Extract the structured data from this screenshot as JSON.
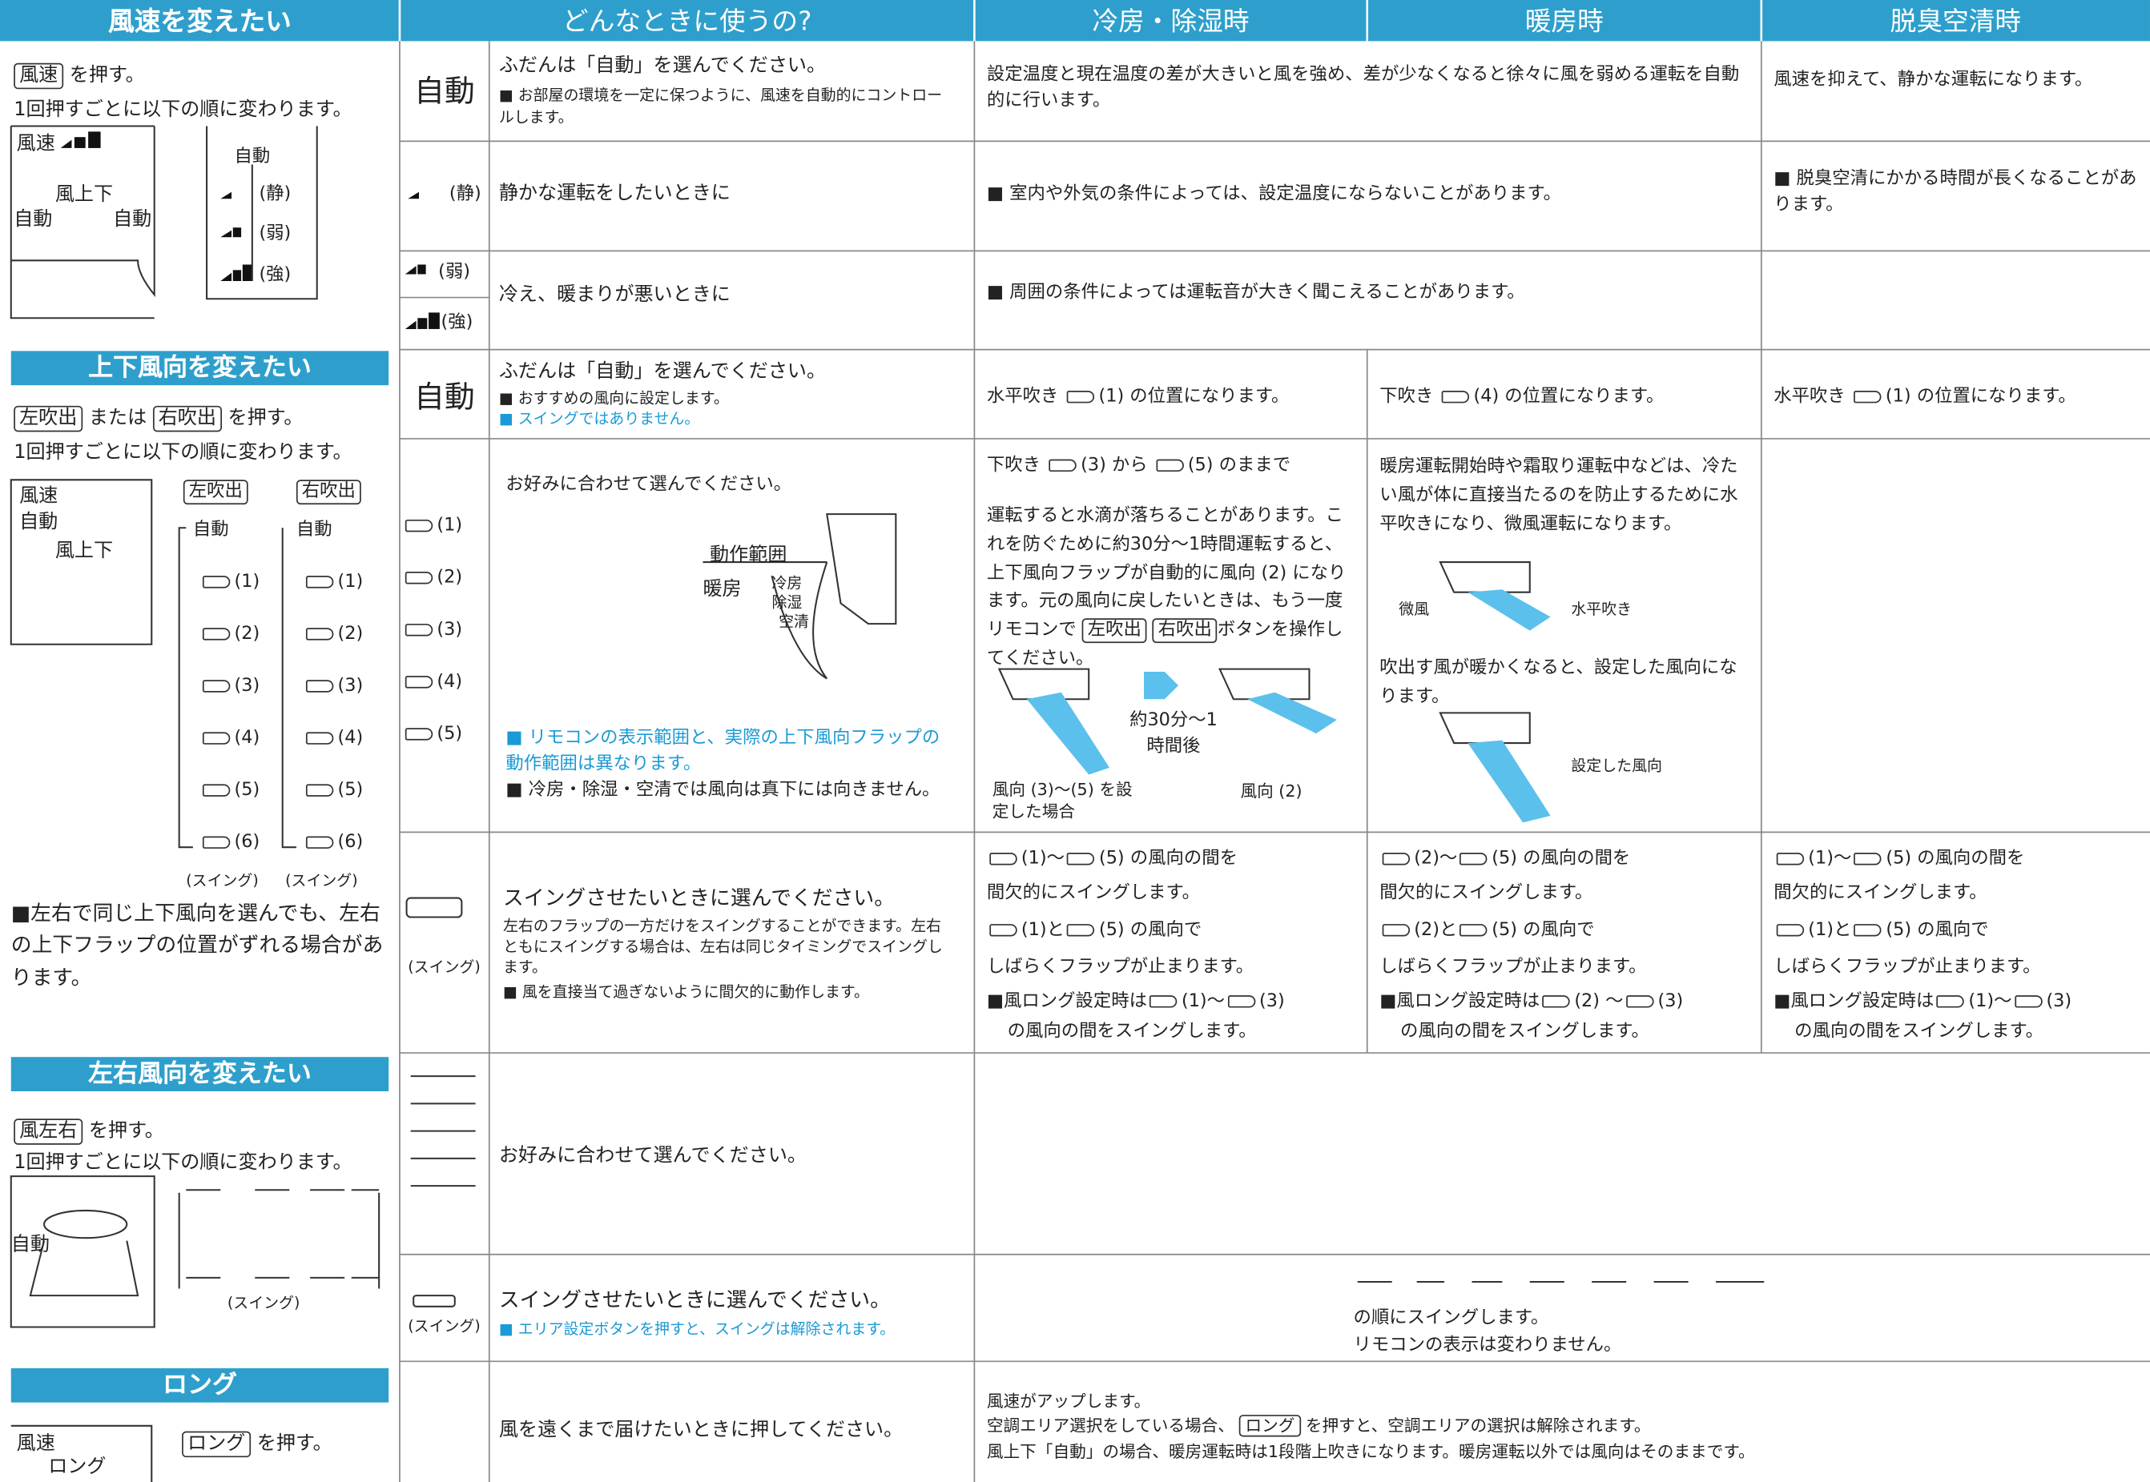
{
  "header": {
    "usage": "どんなときに使うの?",
    "cool": "冷房・除湿時",
    "heat": "暖房時",
    "deodor": "脱臭空清時"
  },
  "fan_speed": {
    "title": "風速を変えたい",
    "button": "風速",
    "press": "を押す。",
    "cycle": "1回押すごとに以下の順に変わります。",
    "display": {
      "speed": "風速",
      "updown": "風上下",
      "auto_left": "自動",
      "auto_right": "自動"
    },
    "sequence": [
      "自動",
      "(静)",
      "(弱)",
      "(強)"
    ],
    "auto": {
      "mode": "自動",
      "usage": "ふだんは「自動」を選んでください。",
      "note": "■ お部屋の環境を一定に保つように、風速を自動的にコントロールします。",
      "cool_heat": "設定温度と現在温度の差が大きいと風を強め、差が少なくなると徐々に風を弱める運転を自動的に行います。",
      "deodor": "風速を抑えて、静かな運転になります。"
    },
    "quiet": {
      "mode": "(静)",
      "usage": "静かな運転をしたいときに",
      "cool_heat": "■ 室内や外気の条件によっては、設定温度にならないことがあります。",
      "deodor": "■ 脱臭空清にかかる時間が長くなることがあります。"
    },
    "strong": {
      "modes": [
        "(弱)",
        "(強)"
      ],
      "usage": "冷え、暖まりが悪いときに",
      "cool_heat": "■ 周囲の条件によっては運転音が大きく聞こえることがあります。"
    }
  },
  "vertical": {
    "title": "上下風向を変えたい",
    "button_left": "左吹出",
    "or": "または",
    "button_right": "右吹出",
    "press": "を押す。",
    "cycle": "1回押すごとに以下の順に変わります。",
    "display": {
      "speed": "風速",
      "auto": "自動",
      "updown": "風上下"
    },
    "columns": [
      "左吹出",
      "右吹出"
    ],
    "sequence": [
      "自動",
      "(1)",
      "(2)",
      "(3)",
      "(4)",
      "(5)",
      "(6)"
    ],
    "swing_labels": [
      "(スイング)",
      "(スイング)"
    ],
    "note": "■左右で同じ上下風向を選んでも、左右の上下フラップの位置がずれる場合があります。",
    "auto": {
      "mode": "自動",
      "usage": "ふだんは「自動」を選んでください。",
      "notes": [
        "■ おすすめの風向に設定します。",
        "■ スイングではありません。"
      ],
      "cool": [
        "水平吹き",
        "(1) の位置になります。"
      ],
      "heat": [
        "下吹き",
        "(4) の位置になります。"
      ],
      "deodor": [
        "水平吹き",
        "(1) の位置になります。"
      ]
    },
    "options": {
      "positions": [
        "(1)",
        "(2)",
        "(3)",
        "(4)",
        "(5)"
      ],
      "usage": "お好みに合わせて選んでください。",
      "figure": [
        "動作範囲",
        "暖房",
        "冷房",
        "除湿",
        "空清"
      ],
      "notes": [
        "■ リモコンの表示範囲と、実際の上下風向フラップの動作範囲は異なります。",
        "■ 冷房・除湿・空清では風向は真下には向きません。"
      ],
      "cool": {
        "intro": [
          "下吹き",
          "(3) から",
          "(5) のままで"
        ],
        "text": "運転すると水滴が落ちることがあります。これを防ぐために約30分～1時間運転すると、上下風向フラップが自動的に風向 (2) になります。元の風向に戻したいときは、もう一度リモコンで",
        "buttons": [
          "左吹出",
          "右吹出"
        ],
        "text_end": "ボタンを操作してください。",
        "time": "約30分～1時間後",
        "before": "風向 (3)～(5) を設定した場合",
        "after": "風向 (2)"
      },
      "heat": {
        "text": "暖房運転開始時や霜取り運転中などは、冷たい風が体に直接当たるのを防止するために水平吹きになり、微風運転になります。",
        "weak": "微風",
        "horizontal": "水平吹き",
        "text2": "吹出す風が暖かくなると、設定した風向になります。",
        "set": "設定した風向"
      }
    },
    "swing": {
      "label": "(スイング)",
      "usage": "スイングさせたいときに選んでください。",
      "note1": "左右のフラップの一方だけをスイングすることができます。左右ともにスイングする場合は、左右は同じタイミングでスイングします。",
      "note2": "■ 風を直接当て過ぎないように間欠的に動作します。",
      "cool": [
        [
          "(1)～",
          "(5) の風向の間を"
        ],
        [
          "間欠的にスイングします。"
        ],
        [
          "(1)と",
          "(5) の風向で"
        ],
        [
          "しばらくフラップが止まります。"
        ],
        [
          "■風ロング設定時は",
          "(1)～",
          "(3)"
        ],
        [
          "の風向の間をスイングします。"
        ]
      ],
      "heat": [
        [
          "(2)～",
          "(5) の風向の間を"
        ],
        [
          "間欠的にスイングします。"
        ],
        [
          "(2)と",
          "(5) の風向で"
        ],
        [
          "しばらくフラップが止まります。"
        ],
        [
          "■風ロング設定時は",
          "(2) ～",
          "(3)"
        ],
        [
          "の風向の間をスイングします。"
        ]
      ],
      "deodor": [
        [
          "(1)～",
          "(5) の風向の間を"
        ],
        [
          "間欠的にスイングします。"
        ],
        [
          "(1)と",
          "(5) の風向で"
        ],
        [
          "しばらくフラップが止まります。"
        ],
        [
          "■風ロング設定時は",
          "(1)～",
          "(3)"
        ],
        [
          "の風向の間をスイングします。"
        ]
      ]
    }
  },
  "horizontal": {
    "title": "左右風向を変えたい",
    "button": "風左右",
    "press": "を押す。",
    "cycle": "1回押すごとに以下の順に変わります。",
    "display": "自動",
    "swing_label": "(スイング)",
    "options": {
      "usage": "お好みに合わせて選んでください。"
    },
    "swing": {
      "label": "(スイング)",
      "usage": "スイングさせたいときに選んでください。",
      "note": "■ エリア設定ボタンを押すと、スイングは解除されます。",
      "order": "の順にスイングします。",
      "display": "リモコンの表示は変わりません。"
    }
  },
  "long": {
    "title": "ロング",
    "display": {
      "speed": "風速",
      "long": "ロング"
    },
    "button": "ロング",
    "press": "を押す。",
    "usage": "風を遠くまで届けたいときに押してください。",
    "effect": "風速がアップします。",
    "area": "空調エリア選択をしている場合、",
    "area_button": "ロング",
    "area_end": "を押すと、空調エリアの選択は解除されます。",
    "auto": "風上下「自動」の場合、暖房運転時は1段階上吹きになります。暖房運転以外では風向はそのままです。"
  }
}
